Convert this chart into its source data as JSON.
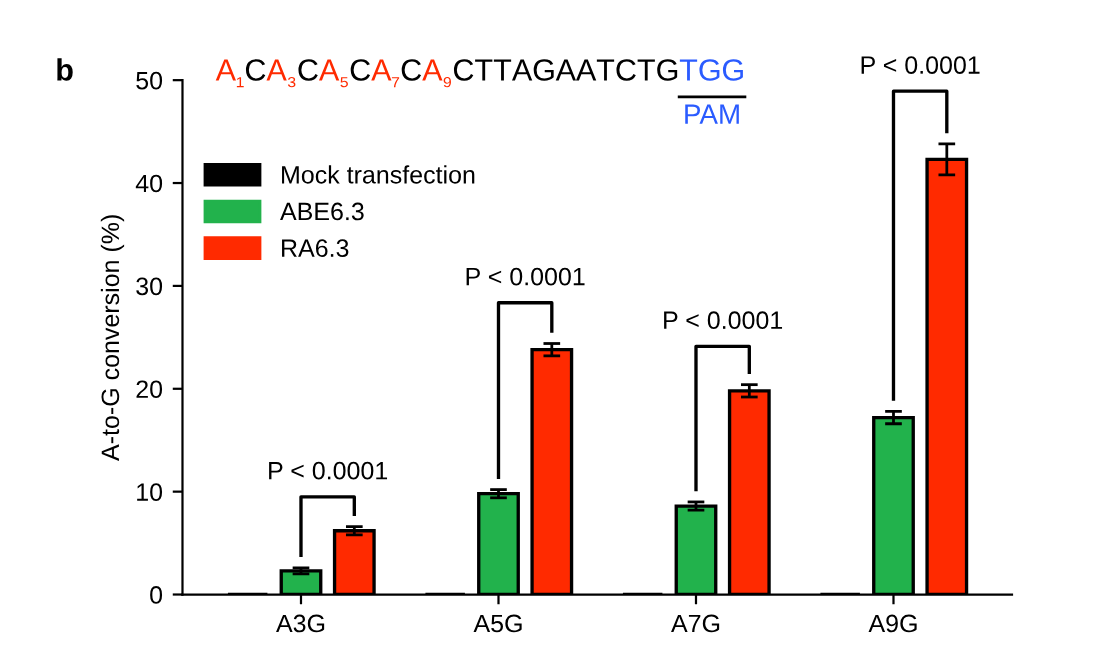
{
  "chart_data": {
    "type": "bar",
    "title": "A₁CA₃CA₅CA₇CA₉CTTAGAATCTGTGG",
    "subtitle": "PAM",
    "ylabel": "A-to-G conversion (%)",
    "categories": [
      "A3G",
      "A5G",
      "A7G",
      "A9G"
    ],
    "series": [
      {
        "name": "Mock transfection",
        "color": "#000000",
        "values": [
          0,
          0,
          0,
          0
        ]
      },
      {
        "name": "ABE6.3",
        "color": "#22b24c",
        "values": [
          2.3,
          9.8,
          8.6,
          17.2
        ],
        "errors": [
          0.3,
          0.4,
          0.4,
          0.6
        ]
      },
      {
        "name": "RA6.3",
        "color": "#ff2a00",
        "values": [
          6.2,
          23.8,
          19.8,
          42.3
        ],
        "errors": [
          0.4,
          0.6,
          0.6,
          1.5
        ]
      }
    ],
    "annotations": [
      "b",
      "P < 0.0001",
      "P < 0.0001",
      "P < 0.0001",
      "P < 0.0001"
    ],
    "ylim": [
      0,
      50
    ],
    "yticks": [
      0,
      10,
      20,
      30,
      40,
      50
    ],
    "grid": false,
    "legend": "top left"
  }
}
